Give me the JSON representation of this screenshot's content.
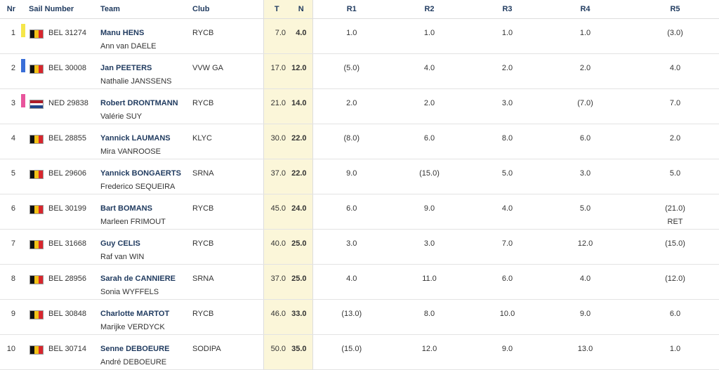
{
  "headers": {
    "nr": "Nr",
    "sail": "Sail Number",
    "team": "Team",
    "club": "Club",
    "t": "T",
    "n": "N",
    "r1": "R1",
    "r2": "R2",
    "r3": "R3",
    "r4": "R4",
    "r5": "R5"
  },
  "colors": {
    "yellow": "#f5e64a",
    "blue": "#3a6fd8",
    "pink": "#e8559c",
    "be_black": "#111111",
    "be_yellow": "#f2c318",
    "be_red": "#d7262e",
    "nl_red": "#ae1c28",
    "nl_white": "#ffffff",
    "nl_blue": "#21468b"
  },
  "rows": [
    {
      "nr": "1",
      "bar": "yellow",
      "flag": "be",
      "sail": "BEL 31274",
      "skipper": "Manu HENS",
      "crew": "Ann van DAELE",
      "club": "RYCB",
      "t": "7.0",
      "n": "4.0",
      "r1": "1.0",
      "r2": "1.0",
      "r3": "1.0",
      "r4": "1.0",
      "r5": "(3.0)",
      "r5b": ""
    },
    {
      "nr": "2",
      "bar": "blue",
      "flag": "be",
      "sail": "BEL 30008",
      "skipper": "Jan PEETERS",
      "crew": "Nathalie JANSSENS",
      "club": "VVW GA",
      "t": "17.0",
      "n": "12.0",
      "r1": "(5.0)",
      "r2": "4.0",
      "r3": "2.0",
      "r4": "2.0",
      "r5": "4.0",
      "r5b": ""
    },
    {
      "nr": "3",
      "bar": "pink",
      "flag": "nl",
      "sail": "NED 29838",
      "skipper": "Robert DRONTMANN",
      "crew": "Valérie SUY",
      "club": "RYCB",
      "t": "21.0",
      "n": "14.0",
      "r1": "2.0",
      "r2": "2.0",
      "r3": "3.0",
      "r4": "(7.0)",
      "r5": "7.0",
      "r5b": ""
    },
    {
      "nr": "4",
      "bar": "",
      "flag": "be",
      "sail": "BEL 28855",
      "skipper": "Yannick LAUMANS",
      "crew": "Mira VANROOSE",
      "club": "KLYC",
      "t": "30.0",
      "n": "22.0",
      "r1": "(8.0)",
      "r2": "6.0",
      "r3": "8.0",
      "r4": "6.0",
      "r5": "2.0",
      "r5b": ""
    },
    {
      "nr": "5",
      "bar": "",
      "flag": "be",
      "sail": "BEL 29606",
      "skipper": "Yannick BONGAERTS",
      "crew": "Frederico SEQUEIRA",
      "club": "SRNA",
      "t": "37.0",
      "n": "22.0",
      "r1": "9.0",
      "r2": "(15.0)",
      "r3": "5.0",
      "r4": "3.0",
      "r5": "5.0",
      "r5b": ""
    },
    {
      "nr": "6",
      "bar": "",
      "flag": "be",
      "sail": "BEL 30199",
      "skipper": "Bart BOMANS",
      "crew": "Marleen FRIMOUT",
      "club": "RYCB",
      "t": "45.0",
      "n": "24.0",
      "r1": "6.0",
      "r2": "9.0",
      "r3": "4.0",
      "r4": "5.0",
      "r5": "(21.0)",
      "r5b": "RET"
    },
    {
      "nr": "7",
      "bar": "",
      "flag": "be",
      "sail": "BEL 31668",
      "skipper": "Guy CELIS",
      "crew": "Raf van WIN",
      "club": "RYCB",
      "t": "40.0",
      "n": "25.0",
      "r1": "3.0",
      "r2": "3.0",
      "r3": "7.0",
      "r4": "12.0",
      "r5": "(15.0)",
      "r5b": ""
    },
    {
      "nr": "8",
      "bar": "",
      "flag": "be",
      "sail": "BEL 28956",
      "skipper": "Sarah de CANNIERE",
      "crew": "Sonia WYFFELS",
      "club": "SRNA",
      "t": "37.0",
      "n": "25.0",
      "r1": "4.0",
      "r2": "11.0",
      "r3": "6.0",
      "r4": "4.0",
      "r5": "(12.0)",
      "r5b": ""
    },
    {
      "nr": "9",
      "bar": "",
      "flag": "be",
      "sail": "BEL 30848",
      "skipper": "Charlotte MARTOT",
      "crew": "Marijke VERDYCK",
      "club": "RYCB",
      "t": "46.0",
      "n": "33.0",
      "r1": "(13.0)",
      "r2": "8.0",
      "r3": "10.0",
      "r4": "9.0",
      "r5": "6.0",
      "r5b": ""
    },
    {
      "nr": "10",
      "bar": "",
      "flag": "be",
      "sail": "BEL 30714",
      "skipper": "Senne DEBOEURE",
      "crew": "André DEBOEURE",
      "club": "SODIPA",
      "t": "50.0",
      "n": "35.0",
      "r1": "(15.0)",
      "r2": "12.0",
      "r3": "9.0",
      "r4": "13.0",
      "r5": "1.0",
      "r5b": ""
    }
  ]
}
